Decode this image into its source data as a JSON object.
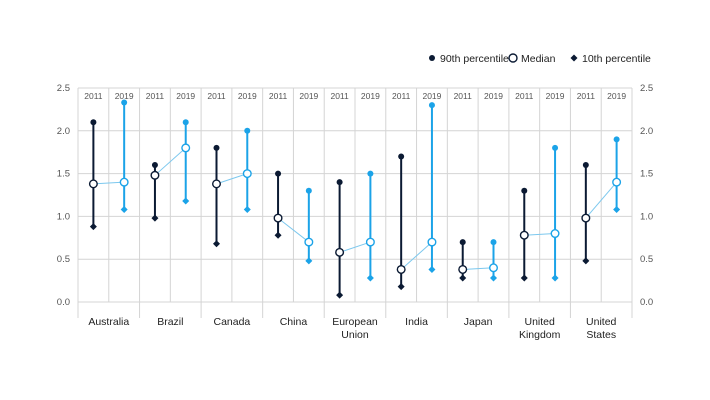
{
  "chart_data": {
    "type": "dot-range",
    "y_axis": {
      "min": 0,
      "max": 2.5,
      "ticks": [
        "0.0",
        "0.5",
        "1.0",
        "1.5",
        "2.0",
        "2.5"
      ],
      "position": "both"
    },
    "grid": true,
    "legend": {
      "placement": "top-right",
      "entries": [
        {
          "label": "90th percentile",
          "marker": "filled-circle"
        },
        {
          "label": "Median",
          "marker": "open-circle"
        },
        {
          "label": "10th percentile",
          "marker": "diamond"
        }
      ]
    },
    "colors": {
      "2011": "#0b1a33",
      "2019": "#1ba3e8",
      "connector": "#7cc8ee",
      "grid": "#d4d4d4"
    },
    "series": [
      {
        "name": "2011",
        "label": "2011"
      },
      {
        "name": "2019",
        "label": "2019"
      }
    ],
    "categories": [
      {
        "label": [
          "Australia"
        ],
        "y2011": {
          "p90": 2.1,
          "median": 1.38,
          "p10": 0.88
        },
        "y2019": {
          "p90": 2.33,
          "median": 1.4,
          "p10": 1.08
        }
      },
      {
        "label": [
          "Brazil"
        ],
        "y2011": {
          "p90": 1.6,
          "median": 1.48,
          "p10": 0.98
        },
        "y2019": {
          "p90": 2.1,
          "median": 1.8,
          "p10": 1.18
        }
      },
      {
        "label": [
          "Canada"
        ],
        "y2011": {
          "p90": 1.8,
          "median": 1.38,
          "p10": 0.68
        },
        "y2019": {
          "p90": 2.0,
          "median": 1.5,
          "p10": 1.08
        }
      },
      {
        "label": [
          "China"
        ],
        "y2011": {
          "p90": 1.5,
          "median": 0.98,
          "p10": 0.78
        },
        "y2019": {
          "p90": 1.3,
          "median": 0.7,
          "p10": 0.48
        }
      },
      {
        "label": [
          "European",
          "Union"
        ],
        "y2011": {
          "p90": 1.4,
          "median": 0.58,
          "p10": 0.08
        },
        "y2019": {
          "p90": 1.5,
          "median": 0.7,
          "p10": 0.28
        }
      },
      {
        "label": [
          "India"
        ],
        "y2011": {
          "p90": 1.7,
          "median": 0.38,
          "p10": 0.18
        },
        "y2019": {
          "p90": 2.3,
          "median": 0.7,
          "p10": 0.38
        }
      },
      {
        "label": [
          "Japan"
        ],
        "y2011": {
          "p90": 0.7,
          "median": 0.38,
          "p10": 0.28
        },
        "y2019": {
          "p90": 0.7,
          "median": 0.4,
          "p10": 0.28
        }
      },
      {
        "label": [
          "United",
          "Kingdom"
        ],
        "y2011": {
          "p90": 1.3,
          "median": 0.78,
          "p10": 0.28
        },
        "y2019": {
          "p90": 1.8,
          "median": 0.8,
          "p10": 0.28
        }
      },
      {
        "label": [
          "United",
          "States"
        ],
        "y2011": {
          "p90": 1.6,
          "median": 0.98,
          "p10": 0.48
        },
        "y2019": {
          "p90": 1.9,
          "median": 1.4,
          "p10": 1.08
        }
      }
    ]
  }
}
